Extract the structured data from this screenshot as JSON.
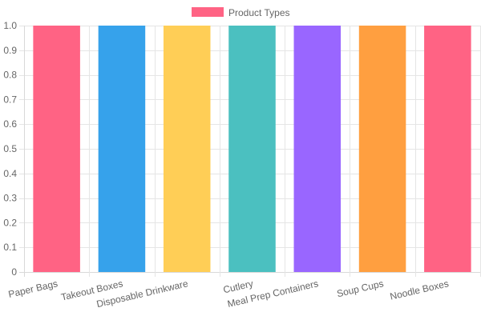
{
  "chart_data": {
    "type": "bar",
    "legend": {
      "label": "Product Types",
      "color": "#ff6384",
      "position": "top"
    },
    "categories": [
      "Paper Bags",
      "Takeout Boxes",
      "Disposable Drinkware",
      "Cutlery",
      "Meal Prep Containers",
      "Soup Cups",
      "Noodle Boxes"
    ],
    "values": [
      1,
      1,
      1,
      1,
      1,
      1,
      1
    ],
    "colors": [
      "#ff6384",
      "#36a2eb",
      "#ffce56",
      "#4bc0c0",
      "#9966ff",
      "#ff9f40",
      "#ff6384"
    ],
    "ylim": [
      0,
      1
    ],
    "yticks": [
      "0",
      "0.1",
      "0.2",
      "0.3",
      "0.4",
      "0.5",
      "0.6",
      "0.7",
      "0.8",
      "0.9",
      "1.0"
    ],
    "grid": true
  }
}
